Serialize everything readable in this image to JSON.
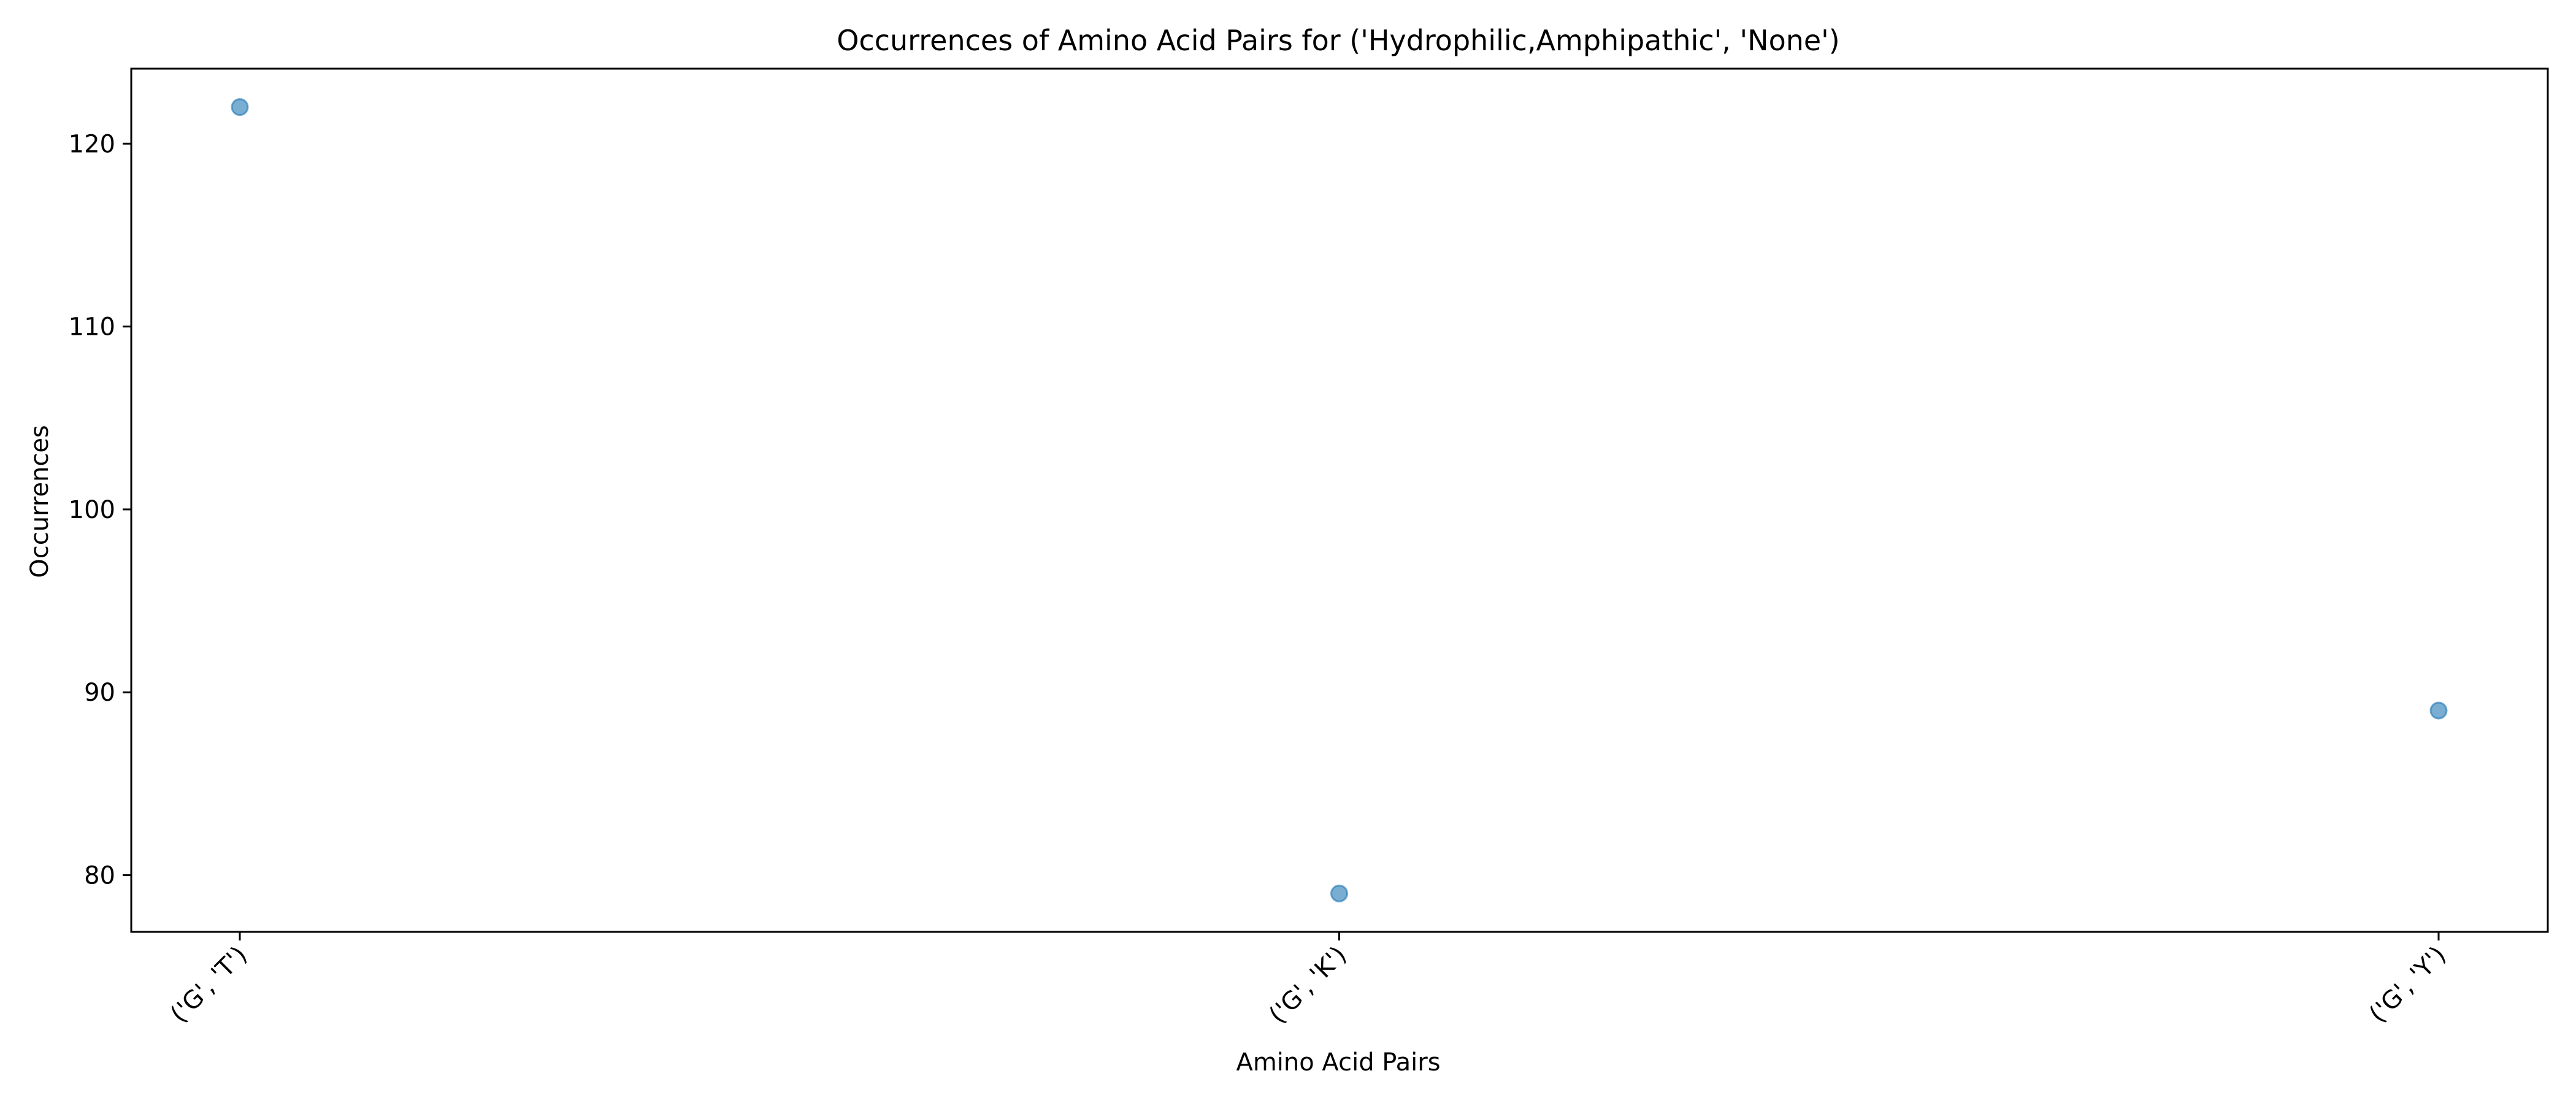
{
  "chart_data": {
    "type": "scatter",
    "title": "Occurrences of Amino Acid Pairs for ('Hydrophilic,Amphipathic', 'None')",
    "xlabel": "Amino Acid Pairs",
    "ylabel": "Occurrences",
    "categories": [
      "('G', 'T')",
      "('G', 'K')",
      "('G', 'Y')"
    ],
    "values": [
      122,
      79,
      89
    ],
    "ylim": [
      76.9,
      124.1
    ],
    "yticks": [
      80,
      90,
      100,
      110,
      120
    ],
    "xtick_rotation": 45,
    "grid": false,
    "legend": "none",
    "colors": {
      "marker": "#1f77b4",
      "axis": "#000000",
      "background": "#ffffff"
    }
  }
}
